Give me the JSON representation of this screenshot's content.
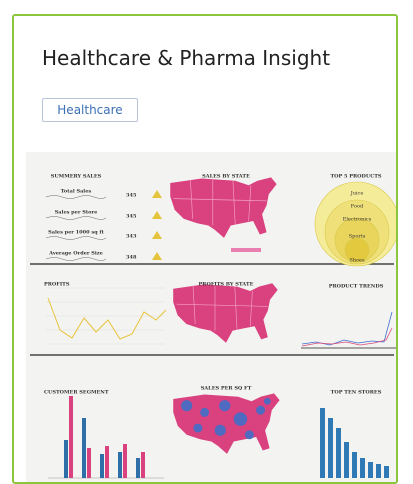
{
  "card": {
    "title": "Healthcare & Pharma Insight",
    "tag": "Healthcare"
  },
  "dashboard": {
    "summary": {
      "title": "SUMMERY SALES",
      "metrics": [
        {
          "label": "Total Sales",
          "value": "345"
        },
        {
          "label": "Sales per Store",
          "value": "345"
        },
        {
          "label": "Sales per 1000 sq ft",
          "value": "343"
        },
        {
          "label": "Average Order Size",
          "value": "348"
        }
      ]
    },
    "panels": [
      "SALES BY STATE",
      "TOP 5 PRODUCTS",
      "PROFITS",
      "PROFITS BY STATE",
      "PRODUCT TRENDS",
      "CUSTOMER SEGMENT",
      "SALES PER SQ FT",
      "TOP TEN STORES"
    ],
    "products": [
      "Juice",
      "Food",
      "Electronics",
      "Sports",
      "Shoes"
    ]
  }
}
